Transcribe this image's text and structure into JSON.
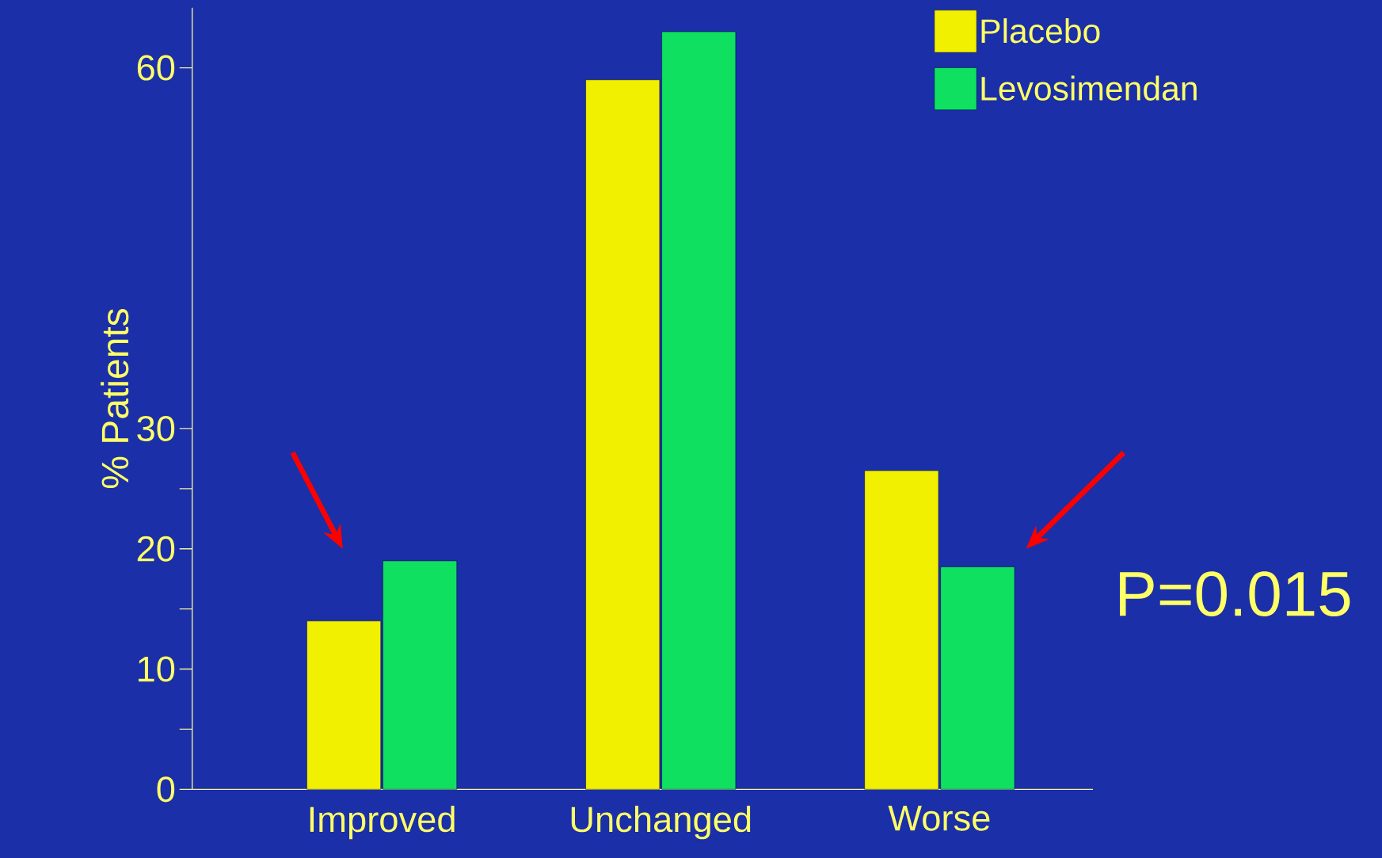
{
  "chart_data": {
    "type": "bar",
    "ylabel": "% Patients",
    "categories": [
      "Improved",
      "Unchanged",
      "Worse"
    ],
    "series": [
      {
        "name": "Placebo",
        "color": "#f0f000",
        "values": [
          14,
          59,
          26.5
        ]
      },
      {
        "name": "Levosimendan",
        "color": "#10e060",
        "values": [
          19,
          63,
          18.5
        ]
      }
    ],
    "ylim": [
      0,
      65
    ],
    "yticks": [
      0,
      {
        "value": 5,
        "label": null
      },
      10,
      {
        "value": 15,
        "label": null
      },
      20,
      {
        "value": 25,
        "label": null
      },
      30,
      60
    ],
    "legend": "top right",
    "grid": false,
    "annotations": [
      "P=0.015"
    ]
  }
}
